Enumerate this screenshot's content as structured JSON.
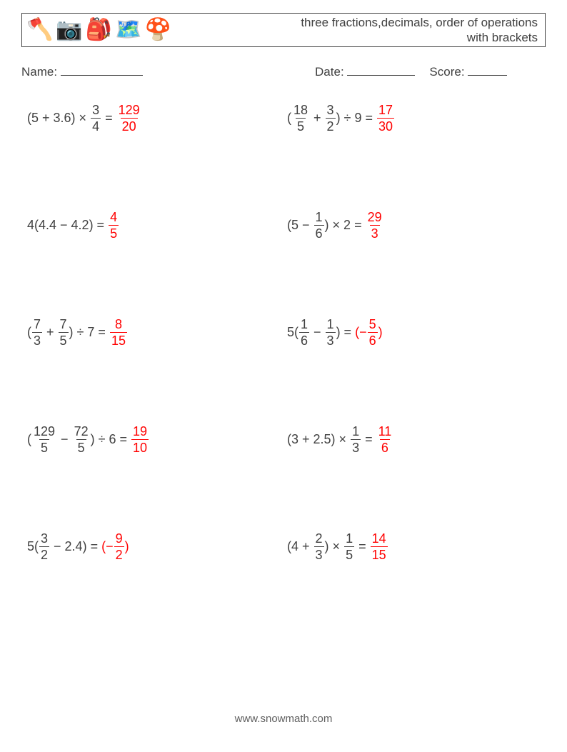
{
  "header": {
    "icons": [
      "🪓",
      "📷",
      "🎒",
      "🗺️",
      "🍄"
    ],
    "title_line1": "three fractions,decimals, order of operations",
    "title_line2": "with brackets"
  },
  "meta": {
    "name_label": "Name:",
    "date_label": "Date:",
    "score_label": "Score:",
    "name_blank_width": 115,
    "date_blank_width": 95,
    "score_blank_width": 55
  },
  "footer": "www.snowmath.com",
  "colors": {
    "text": "#404040",
    "answer": "#ff0000",
    "background": "#ffffff"
  },
  "problems": [
    {
      "left": [
        {
          "t": "text",
          "v": "(5 + 3.6) × "
        },
        {
          "t": "frac",
          "n": "3",
          "d": "4"
        },
        {
          "t": "text",
          "v": " = "
        }
      ],
      "answer": [
        {
          "t": "frac",
          "n": "129",
          "d": "20"
        }
      ]
    },
    {
      "left": [
        {
          "t": "text",
          "v": "("
        },
        {
          "t": "frac",
          "n": "18",
          "d": "5"
        },
        {
          "t": "text",
          "v": " + "
        },
        {
          "t": "frac",
          "n": "3",
          "d": "2"
        },
        {
          "t": "text",
          "v": ") ÷ 9 = "
        }
      ],
      "answer": [
        {
          "t": "frac",
          "n": "17",
          "d": "30"
        }
      ]
    },
    {
      "left": [
        {
          "t": "text",
          "v": "4(4.4 − 4.2) = "
        }
      ],
      "answer": [
        {
          "t": "frac",
          "n": "4",
          "d": "5"
        }
      ]
    },
    {
      "left": [
        {
          "t": "text",
          "v": "(5 − "
        },
        {
          "t": "frac",
          "n": "1",
          "d": "6"
        },
        {
          "t": "text",
          "v": ") × 2 = "
        }
      ],
      "answer": [
        {
          "t": "frac",
          "n": "29",
          "d": "3"
        }
      ]
    },
    {
      "left": [
        {
          "t": "text",
          "v": "("
        },
        {
          "t": "frac",
          "n": "7",
          "d": "3"
        },
        {
          "t": "text",
          "v": " + "
        },
        {
          "t": "frac",
          "n": "7",
          "d": "5"
        },
        {
          "t": "text",
          "v": ") ÷ 7 = "
        }
      ],
      "answer": [
        {
          "t": "frac",
          "n": "8",
          "d": "15"
        }
      ]
    },
    {
      "left": [
        {
          "t": "text",
          "v": "5("
        },
        {
          "t": "frac",
          "n": "1",
          "d": "6"
        },
        {
          "t": "text",
          "v": " − "
        },
        {
          "t": "frac",
          "n": "1",
          "d": "3"
        },
        {
          "t": "text",
          "v": ") = "
        }
      ],
      "answer": [
        {
          "t": "text",
          "v": "(−"
        },
        {
          "t": "frac",
          "n": "5",
          "d": "6"
        },
        {
          "t": "text",
          "v": ")"
        }
      ]
    },
    {
      "left": [
        {
          "t": "text",
          "v": "("
        },
        {
          "t": "frac",
          "n": "129",
          "d": "5"
        },
        {
          "t": "text",
          "v": " − "
        },
        {
          "t": "frac",
          "n": "72",
          "d": "5"
        },
        {
          "t": "text",
          "v": ") ÷ 6 = "
        }
      ],
      "answer": [
        {
          "t": "frac",
          "n": "19",
          "d": "10"
        }
      ]
    },
    {
      "left": [
        {
          "t": "text",
          "v": "(3 + 2.5) × "
        },
        {
          "t": "frac",
          "n": "1",
          "d": "3"
        },
        {
          "t": "text",
          "v": " = "
        }
      ],
      "answer": [
        {
          "t": "frac",
          "n": "11",
          "d": "6"
        }
      ]
    },
    {
      "left": [
        {
          "t": "text",
          "v": "5("
        },
        {
          "t": "frac",
          "n": "3",
          "d": "2"
        },
        {
          "t": "text",
          "v": " − 2.4) = "
        }
      ],
      "answer": [
        {
          "t": "text",
          "v": "(−"
        },
        {
          "t": "frac",
          "n": "9",
          "d": "2"
        },
        {
          "t": "text",
          "v": ")"
        }
      ]
    },
    {
      "left": [
        {
          "t": "text",
          "v": "(4 + "
        },
        {
          "t": "frac",
          "n": "2",
          "d": "3"
        },
        {
          "t": "text",
          "v": ") × "
        },
        {
          "t": "frac",
          "n": "1",
          "d": "5"
        },
        {
          "t": "text",
          "v": " = "
        }
      ],
      "answer": [
        {
          "t": "frac",
          "n": "14",
          "d": "15"
        }
      ]
    }
  ]
}
